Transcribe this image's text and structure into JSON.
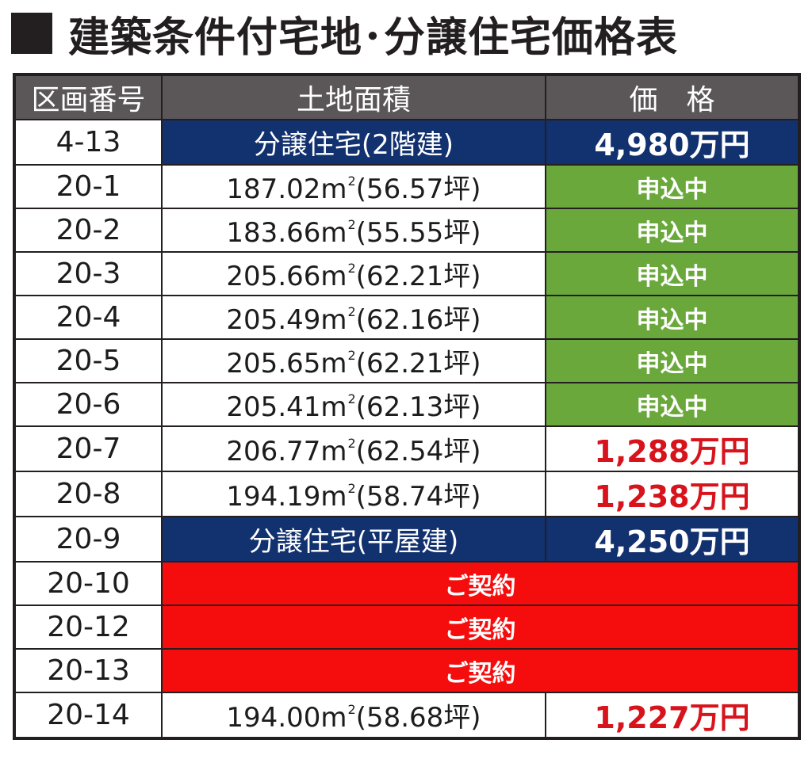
{
  "title": "建築条件付宅地･分譲住宅価格表",
  "headers": {
    "lot": "区画番号",
    "area": "土地面積",
    "price": "価　格"
  },
  "rows": [
    {
      "lot": "4-13",
      "kind": "house",
      "area_text": "分譲住宅(2階建)",
      "price": "4,980万円"
    },
    {
      "lot": "20-1",
      "kind": "applying",
      "area": "187.02m",
      "sup": "2",
      "tsubo": "(56.57坪)",
      "status": "申込中"
    },
    {
      "lot": "20-2",
      "kind": "applying",
      "area": "183.66m",
      "sup": "2",
      "tsubo": "(55.55坪)",
      "status": "申込中"
    },
    {
      "lot": "20-3",
      "kind": "applying",
      "area": "205.66m",
      "sup": "2",
      "tsubo": "(62.21坪)",
      "status": "申込中"
    },
    {
      "lot": "20-4",
      "kind": "applying",
      "area": "205.49m",
      "sup": "2",
      "tsubo": "(62.16坪)",
      "status": "申込中"
    },
    {
      "lot": "20-5",
      "kind": "applying",
      "area": "205.65m",
      "sup": "2",
      "tsubo": "(62.21坪)",
      "status": "申込中"
    },
    {
      "lot": "20-6",
      "kind": "applying",
      "area": "205.41m",
      "sup": "2",
      "tsubo": "(62.13坪)",
      "status": "申込中"
    },
    {
      "lot": "20-7",
      "kind": "price",
      "area": "206.77m",
      "sup": "2",
      "tsubo": "(62.54坪)",
      "price": "1,288万円"
    },
    {
      "lot": "20-8",
      "kind": "price",
      "area": "194.19m",
      "sup": "2",
      "tsubo": "(58.74坪)",
      "price": "1,238万円"
    },
    {
      "lot": "20-9",
      "kind": "house",
      "area_text": "分譲住宅(平屋建)",
      "price": "4,250万円"
    },
    {
      "lot": "20-10",
      "kind": "contracted",
      "status": "ご契約"
    },
    {
      "lot": "20-12",
      "kind": "contracted",
      "status": "ご契約"
    },
    {
      "lot": "20-13",
      "kind": "contracted",
      "status": "ご契約"
    },
    {
      "lot": "20-14",
      "kind": "price",
      "area": "194.00m",
      "sup": "2",
      "tsubo": "(58.68坪)",
      "price": "1,227万円"
    }
  ]
}
